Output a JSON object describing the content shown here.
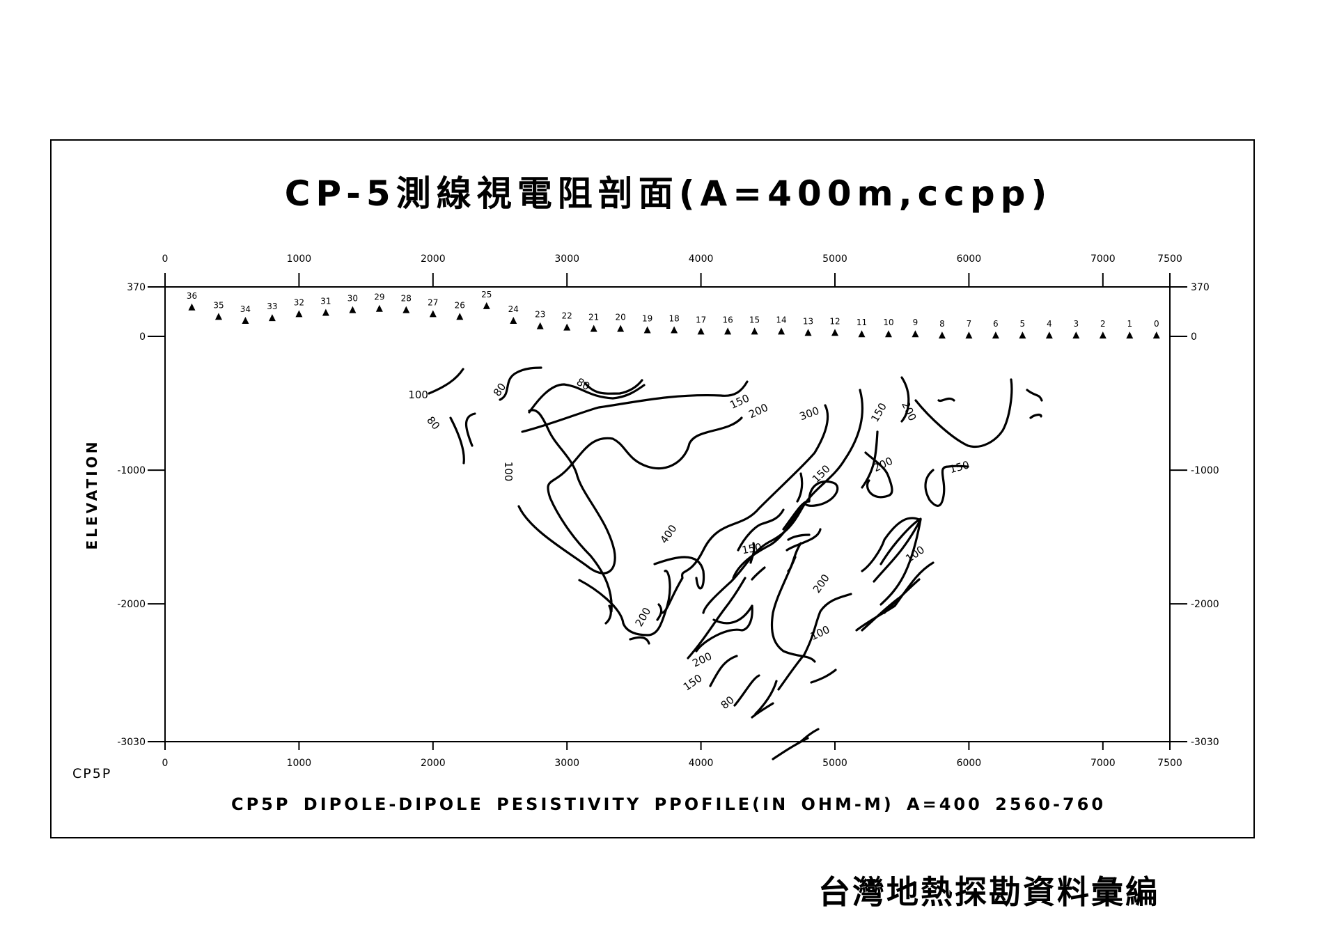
{
  "title": "CP-5測線視電阻剖面(A=400m,ccpp)",
  "profile_id": "CP5P",
  "caption": "CP5P DIPOLE-DIPOLE PESISTIVITY  PPOFILE(IN OHM-M) A=400 2560-760",
  "source": "台灣地熱探勘資料彙編",
  "chart_data": {
    "type": "contour",
    "title": "CP-5測線視電阻剖面(A=400m,ccpp)",
    "xlabel": "",
    "ylabel": "ELEVATION",
    "xlim": [
      0,
      7500
    ],
    "ylim": [
      -3030,
      370
    ],
    "x_ticks": [
      0,
      1000,
      2000,
      3000,
      4000,
      5000,
      6000,
      7000,
      7500
    ],
    "y_ticks": [
      370,
      0,
      -1000,
      -2000,
      -3030
    ],
    "grid": false,
    "units": "OHM-M",
    "stations": [
      {
        "label": "36",
        "x": 200,
        "y": 220
      },
      {
        "label": "35",
        "x": 400,
        "y": 150
      },
      {
        "label": "34",
        "x": 600,
        "y": 120
      },
      {
        "label": "33",
        "x": 800,
        "y": 140
      },
      {
        "label": "32",
        "x": 1000,
        "y": 170
      },
      {
        "label": "31",
        "x": 1200,
        "y": 180
      },
      {
        "label": "30",
        "x": 1400,
        "y": 200
      },
      {
        "label": "29",
        "x": 1600,
        "y": 210
      },
      {
        "label": "28",
        "x": 1800,
        "y": 200
      },
      {
        "label": "27",
        "x": 2000,
        "y": 170
      },
      {
        "label": "26",
        "x": 2200,
        "y": 150
      },
      {
        "label": "25",
        "x": 2400,
        "y": 230
      },
      {
        "label": "24",
        "x": 2600,
        "y": 120
      },
      {
        "label": "23",
        "x": 2800,
        "y": 80
      },
      {
        "label": "22",
        "x": 3000,
        "y": 70
      },
      {
        "label": "21",
        "x": 3200,
        "y": 60
      },
      {
        "label": "20",
        "x": 3400,
        "y": 60
      },
      {
        "label": "19",
        "x": 3600,
        "y": 50
      },
      {
        "label": "18",
        "x": 3800,
        "y": 50
      },
      {
        "label": "17",
        "x": 4000,
        "y": 40
      },
      {
        "label": "16",
        "x": 4200,
        "y": 40
      },
      {
        "label": "15",
        "x": 4400,
        "y": 40
      },
      {
        "label": "14",
        "x": 4600,
        "y": 40
      },
      {
        "label": "13",
        "x": 4800,
        "y": 30
      },
      {
        "label": "12",
        "x": 5000,
        "y": 30
      },
      {
        "label": "11",
        "x": 5200,
        "y": 20
      },
      {
        "label": "10",
        "x": 5400,
        "y": 20
      },
      {
        "label": "9",
        "x": 5600,
        "y": 20
      },
      {
        "label": "8",
        "x": 5800,
        "y": 10
      },
      {
        "label": "7",
        "x": 6000,
        "y": 10
      },
      {
        "label": "6",
        "x": 6200,
        "y": 10
      },
      {
        "label": "5",
        "x": 6400,
        "y": 10
      },
      {
        "label": "4",
        "x": 6600,
        "y": 10
      },
      {
        "label": "3",
        "x": 6800,
        "y": 10
      },
      {
        "label": "2",
        "x": 7000,
        "y": 10
      },
      {
        "label": "1",
        "x": 7200,
        "y": 10
      },
      {
        "label": "0",
        "x": 7400,
        "y": 10
      }
    ],
    "contour_labels": [
      {
        "text": "100",
        "x": 1890,
        "y": -440,
        "rot": 0
      },
      {
        "text": "80",
        "x": 2500,
        "y": -400,
        "rot": -55
      },
      {
        "text": "80",
        "x": 3120,
        "y": -360,
        "rot": 30
      },
      {
        "text": "80",
        "x": 2000,
        "y": -650,
        "rot": 50
      },
      {
        "text": "100",
        "x": 2560,
        "y": -1010,
        "rot": 90
      },
      {
        "text": "150",
        "x": 4290,
        "y": -490,
        "rot": -25
      },
      {
        "text": "200",
        "x": 4430,
        "y": -560,
        "rot": -25
      },
      {
        "text": "300",
        "x": 4810,
        "y": -580,
        "rot": -20
      },
      {
        "text": "150",
        "x": 5330,
        "y": -570,
        "rot": -60
      },
      {
        "text": "200",
        "x": 5550,
        "y": -560,
        "rot": 65
      },
      {
        "text": "150",
        "x": 5930,
        "y": -980,
        "rot": -15
      },
      {
        "text": "200",
        "x": 5360,
        "y": -960,
        "rot": -25
      },
      {
        "text": "150",
        "x": 4900,
        "y": -1030,
        "rot": -45
      },
      {
        "text": "400",
        "x": 3760,
        "y": -1480,
        "rot": -55
      },
      {
        "text": "150",
        "x": 4380,
        "y": -1590,
        "rot": -10
      },
      {
        "text": "100",
        "x": 5600,
        "y": -1630,
        "rot": -35
      },
      {
        "text": "200",
        "x": 4900,
        "y": -1850,
        "rot": -55
      },
      {
        "text": "200",
        "x": 3570,
        "y": -2100,
        "rot": -60
      },
      {
        "text": "100",
        "x": 4890,
        "y": -2220,
        "rot": -25
      },
      {
        "text": "200",
        "x": 4010,
        "y": -2420,
        "rot": -25
      },
      {
        "text": "150",
        "x": 3940,
        "y": -2590,
        "rot": -35
      },
      {
        "text": "80",
        "x": 4200,
        "y": -2740,
        "rot": -40
      }
    ]
  }
}
